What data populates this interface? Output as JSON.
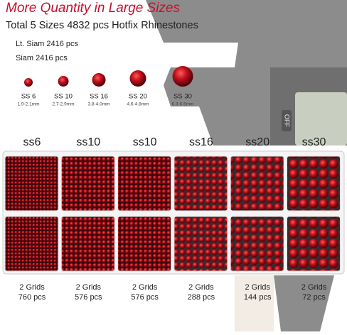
{
  "header": {
    "title": "More Quantity in Large Sizes",
    "subtitle": "Total 5 Sizes 4832 pcs Hotfix Rhinestones",
    "colors": [
      "Lt. Siam 2416 pcs",
      "Siam 2416 pcs"
    ]
  },
  "caliper_button": "OFF",
  "sizes": [
    {
      "label": "SS 6",
      "range": "1.9-2.1mm"
    },
    {
      "label": "SS 10",
      "range": "2.7-2.9mm"
    },
    {
      "label": "SS 16",
      "range": "3.8-4.0mm"
    },
    {
      "label": "SS 20",
      "range": "4.6-4.8mm"
    },
    {
      "label": "SS 30",
      "range": "6.3-6.5mm"
    }
  ],
  "compartments": [
    {
      "label": "ss6",
      "grids": "2 Grids",
      "count": "760 pcs"
    },
    {
      "label": "ss10",
      "grids": "2 Grids",
      "count": "576 pcs"
    },
    {
      "label": "ss10",
      "grids": "2 Grids",
      "count": "576 pcs"
    },
    {
      "label": "ss16",
      "grids": "2 Grids",
      "count": "288 pcs"
    },
    {
      "label": "ss20",
      "grids": "2 Grids",
      "count": "144 pcs"
    },
    {
      "label": "ss30",
      "grids": "2 Grids",
      "count": "72 pcs"
    }
  ]
}
